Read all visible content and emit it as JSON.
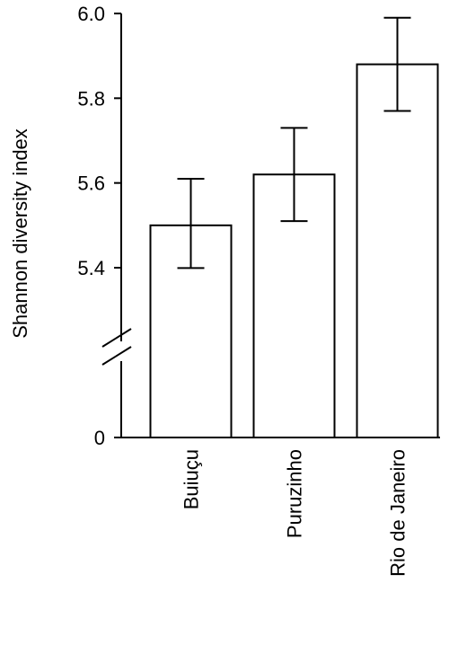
{
  "chart_data": {
    "type": "bar",
    "y_label": "Shannon diversity index",
    "categories": [
      "Buiuçu",
      "Puruzinho",
      "Rio de Janeiro"
    ],
    "values": [
      5.5,
      5.62,
      5.88
    ],
    "errors": [
      0.11,
      0.11,
      0.11
    ],
    "color": "#ffffff",
    "ylim": [
      0,
      6.0
    ],
    "axis_break": [
      0,
      5.4
    ],
    "yticks": [
      0,
      5.4,
      5.6,
      5.8,
      {
        "value": 6.0,
        "label": "6.0"
      }
    ]
  }
}
